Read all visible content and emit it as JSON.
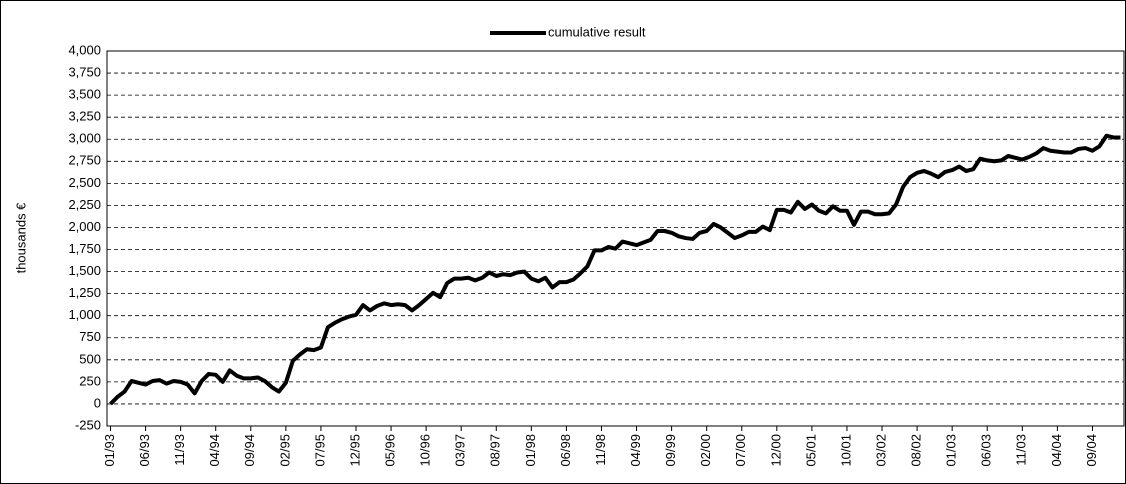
{
  "chart_data": {
    "type": "line",
    "ylabel": "thousands €",
    "categories": [
      "01/93",
      null,
      null,
      null,
      null,
      "06/93",
      null,
      null,
      null,
      null,
      "11/93",
      null,
      null,
      null,
      null,
      "04/94",
      null,
      null,
      null,
      null,
      "09/94",
      null,
      null,
      null,
      null,
      "02/95",
      null,
      null,
      null,
      null,
      "07/95",
      null,
      null,
      null,
      null,
      "12/95",
      null,
      null,
      null,
      null,
      "05/96",
      null,
      null,
      null,
      null,
      "10/96",
      null,
      null,
      null,
      null,
      "03/97",
      null,
      null,
      null,
      null,
      "08/97",
      null,
      null,
      null,
      null,
      "01/98",
      null,
      null,
      null,
      null,
      "06/98",
      null,
      null,
      null,
      null,
      "11/98",
      null,
      null,
      null,
      null,
      "04/99",
      null,
      null,
      null,
      null,
      "09/99",
      null,
      null,
      null,
      null,
      "02/00",
      null,
      null,
      null,
      null,
      "07/00",
      null,
      null,
      null,
      null,
      "12/00",
      null,
      null,
      null,
      null,
      "05/01",
      null,
      null,
      null,
      null,
      "10/01",
      null,
      null,
      null,
      null,
      "03/02",
      null,
      null,
      null,
      null,
      "08/02",
      null,
      null,
      null,
      null,
      "01/03",
      null,
      null,
      null,
      null,
      "06/03",
      null,
      null,
      null,
      null,
      "11/03",
      null,
      null,
      null,
      null,
      "04/04",
      null,
      null,
      null,
      null,
      "09/04",
      null,
      null,
      null,
      null
    ],
    "series": [
      {
        "name": "cumulative result",
        "color": "#000000",
        "values": [
          0,
          80,
          140,
          260,
          240,
          220,
          260,
          270,
          230,
          260,
          250,
          220,
          120,
          260,
          340,
          330,
          250,
          380,
          320,
          290,
          290,
          300,
          260,
          190,
          140,
          240,
          490,
          560,
          620,
          610,
          640,
          870,
          920,
          960,
          990,
          1010,
          1120,
          1060,
          1110,
          1140,
          1120,
          1130,
          1120,
          1060,
          1120,
          1190,
          1260,
          1210,
          1370,
          1420,
          1420,
          1430,
          1400,
          1430,
          1490,
          1450,
          1470,
          1460,
          1490,
          1500,
          1420,
          1390,
          1430,
          1320,
          1380,
          1380,
          1410,
          1480,
          1560,
          1740,
          1740,
          1780,
          1760,
          1840,
          1820,
          1800,
          1830,
          1860,
          1960,
          1960,
          1940,
          1900,
          1880,
          1870,
          1940,
          1960,
          2040,
          2000,
          1940,
          1880,
          1910,
          1950,
          1950,
          2010,
          1970,
          2200,
          2200,
          2170,
          2290,
          2210,
          2260,
          2190,
          2160,
          2240,
          2190,
          2190,
          2030,
          2180,
          2180,
          2150,
          2150,
          2160,
          2260,
          2460,
          2570,
          2620,
          2640,
          2610,
          2570,
          2630,
          2650,
          2690,
          2640,
          2660,
          2780,
          2760,
          2750,
          2760,
          2810,
          2790,
          2770,
          2800,
          2840,
          2900,
          2870,
          2860,
          2850,
          2850,
          2890,
          2900,
          2870,
          2920,
          3040,
          3020,
          3020
        ]
      }
    ],
    "ylim": [
      -250,
      4000
    ],
    "yticks": [
      -250,
      0,
      250,
      500,
      750,
      {
        "value": 1000,
        "label": "1,000"
      },
      {
        "value": 1250,
        "label": "1,250"
      },
      {
        "value": 1500,
        "label": "1,500"
      },
      {
        "value": 1750,
        "label": "1,750"
      },
      {
        "value": 2000,
        "label": "2,000"
      },
      {
        "value": 2250,
        "label": "2,250"
      },
      {
        "value": 2500,
        "label": "2,500"
      },
      {
        "value": 2750,
        "label": "2,750"
      },
      {
        "value": 3000,
        "label": "3,000"
      },
      {
        "value": 3250,
        "label": "3,250"
      },
      {
        "value": 3500,
        "label": "3,500"
      },
      {
        "value": 3750,
        "label": "3,750"
      },
      {
        "value": 4000,
        "label": "4,000"
      }
    ],
    "grid": true,
    "legend": "top"
  }
}
